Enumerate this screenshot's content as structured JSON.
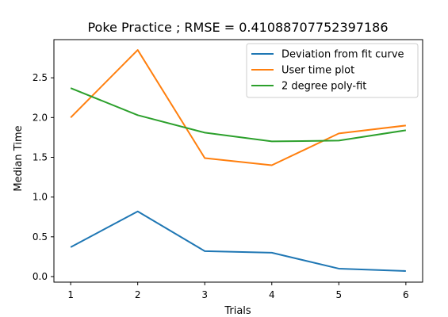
{
  "chart_data": {
    "type": "line",
    "title": "Poke Practice ; RMSE = 0.41088707752397186",
    "xlabel": "Trials",
    "ylabel": "Median Time",
    "x": [
      1,
      2,
      3,
      4,
      5,
      6
    ],
    "xticks": [
      "1",
      "2",
      "3",
      "4",
      "5",
      "6"
    ],
    "yticks": [
      "0.0",
      "0.5",
      "1.0",
      "1.5",
      "2.0",
      "2.5"
    ],
    "xlim": [
      0.75,
      6.25
    ],
    "ylim": [
      -0.07,
      2.98
    ],
    "grid": false,
    "legend_position": "top-right",
    "series": [
      {
        "name": "Deviation from fit curve",
        "color": "#1f77b4",
        "values": [
          0.37,
          0.82,
          0.32,
          0.3,
          0.1,
          0.07
        ]
      },
      {
        "name": "User time plot",
        "color": "#ff7f0e",
        "values": [
          2.0,
          2.85,
          1.49,
          1.4,
          1.8,
          1.9
        ]
      },
      {
        "name": "2 degree poly-fit",
        "color": "#2ca02c",
        "values": [
          2.37,
          2.03,
          1.81,
          1.7,
          1.71,
          1.84
        ]
      }
    ]
  }
}
